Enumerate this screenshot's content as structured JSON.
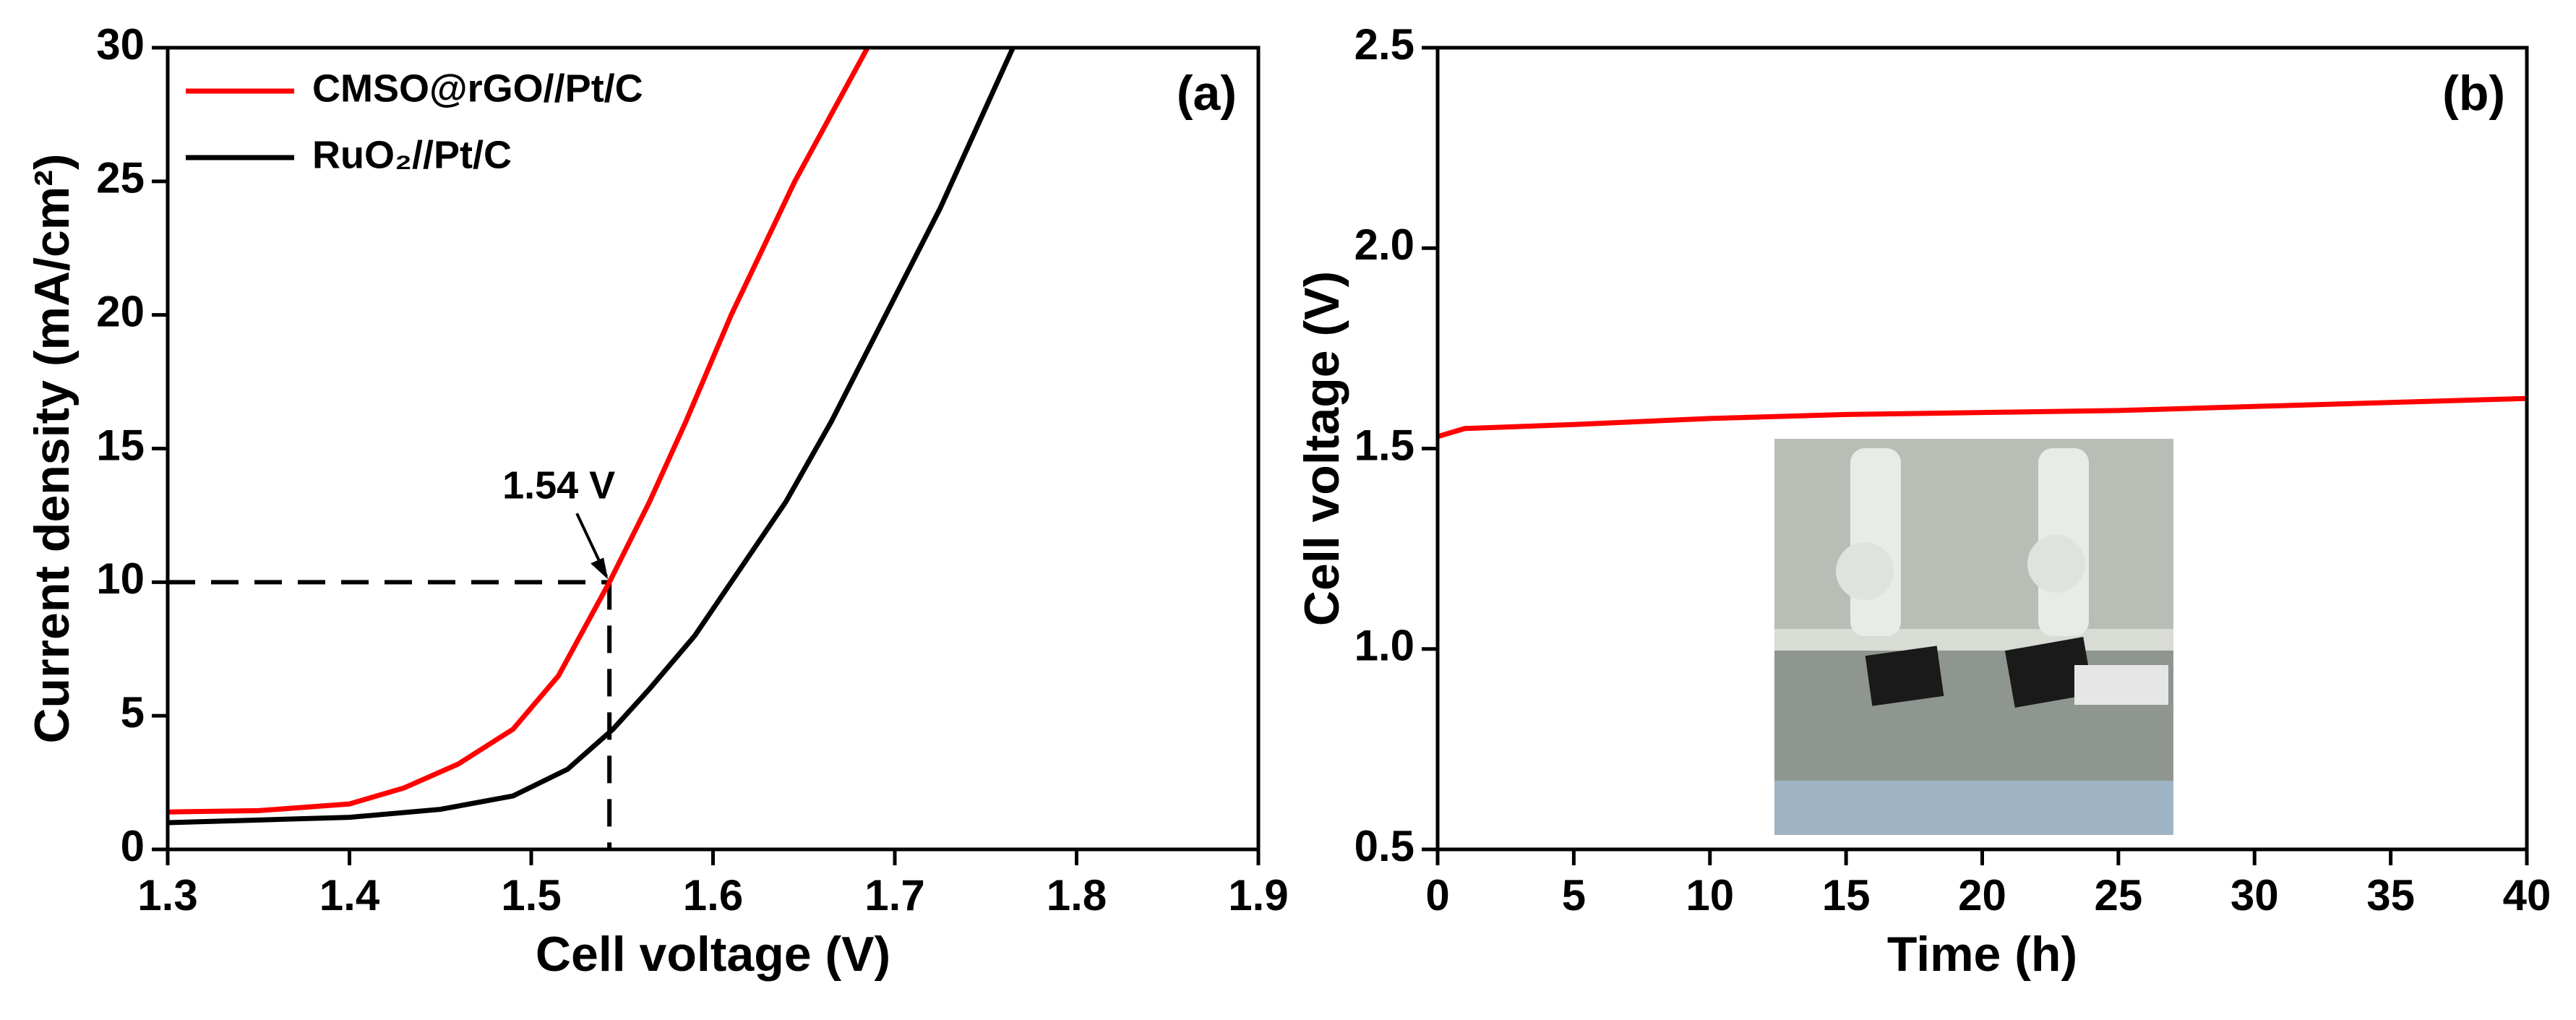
{
  "chart_data": [
    {
      "type": "line",
      "panel_label": "(a)",
      "x_label": "Cell voltage (V)",
      "y_label": "Current density (mA/cm²)",
      "xlim": [
        1.3,
        1.9
      ],
      "xticks": [
        1.3,
        1.4,
        1.5,
        1.6,
        1.7,
        1.8,
        1.9
      ],
      "ylim": [
        0,
        30
      ],
      "yticks": [
        0,
        5,
        10,
        15,
        20,
        25,
        30
      ],
      "legend": "upper left",
      "series": [
        {
          "name": "CMSO@rGO//Pt/C",
          "color": "#ff0000",
          "x": [
            1.3,
            1.35,
            1.4,
            1.43,
            1.46,
            1.49,
            1.515,
            1.543,
            1.565,
            1.585,
            1.61,
            1.645,
            1.685
          ],
          "values": [
            1.4,
            1.45,
            1.7,
            2.3,
            3.2,
            4.5,
            6.5,
            10,
            13,
            16,
            20,
            25,
            30
          ]
        },
        {
          "name": "RuO₂//Pt/C",
          "color": "#000000",
          "x": [
            1.3,
            1.35,
            1.4,
            1.45,
            1.49,
            1.52,
            1.545,
            1.565,
            1.59,
            1.61,
            1.64,
            1.665,
            1.695,
            1.725,
            1.745,
            1.765
          ],
          "values": [
            1.0,
            1.1,
            1.2,
            1.5,
            2,
            3,
            4.5,
            6,
            8,
            10,
            13,
            16,
            20,
            24,
            27,
            30
          ]
        }
      ],
      "annotation": {
        "text": "1.54 V",
        "x": 1.543,
        "y": 10
      }
    },
    {
      "type": "line",
      "panel_label": "(b)",
      "x_label": "Time (h)",
      "y_label": "Cell voltage (V)",
      "xlim": [
        0,
        40
      ],
      "xticks": [
        0,
        5,
        10,
        15,
        20,
        25,
        30,
        35,
        40
      ],
      "ylim": [
        0.5,
        2.5
      ],
      "yticks": [
        0.5,
        {
          "value": 1,
          "label": "1.0"
        },
        1.5,
        {
          "value": 2,
          "label": "2.0"
        },
        2.5
      ],
      "series": [
        {
          "color": "#ff0000",
          "x": [
            0,
            1,
            5,
            10,
            15,
            20,
            25,
            30,
            35,
            40
          ],
          "values": [
            1.53,
            1.55,
            1.56,
            1.575,
            1.585,
            1.59,
            1.595,
            1.605,
            1.615,
            1.625
          ]
        }
      ]
    }
  ]
}
